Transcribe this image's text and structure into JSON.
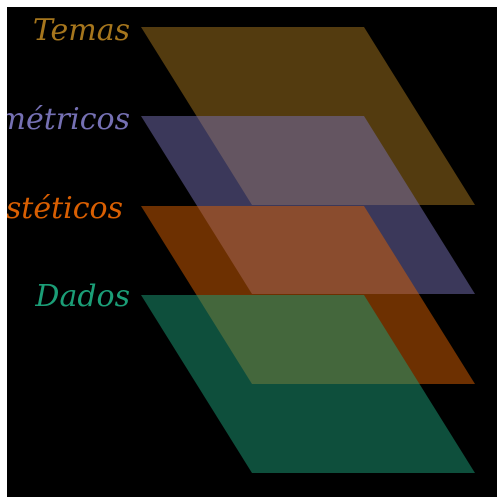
{
  "diagram": {
    "background": "#000000",
    "page_background": "#ffffff",
    "layers": [
      {
        "id": "dados",
        "label": "Dados",
        "color": "#1b9e77",
        "opacity": 0.5
      },
      {
        "id": "esteticos",
        "label": "Estéticos",
        "color": "#d95f02",
        "opacity": 0.5
      },
      {
        "id": "geometricos",
        "label": "Geométricos",
        "color": "#7570b3",
        "opacity": 0.5
      },
      {
        "id": "temas",
        "label": "Temas",
        "color": "#a6761d",
        "opacity": 0.5
      }
    ]
  }
}
